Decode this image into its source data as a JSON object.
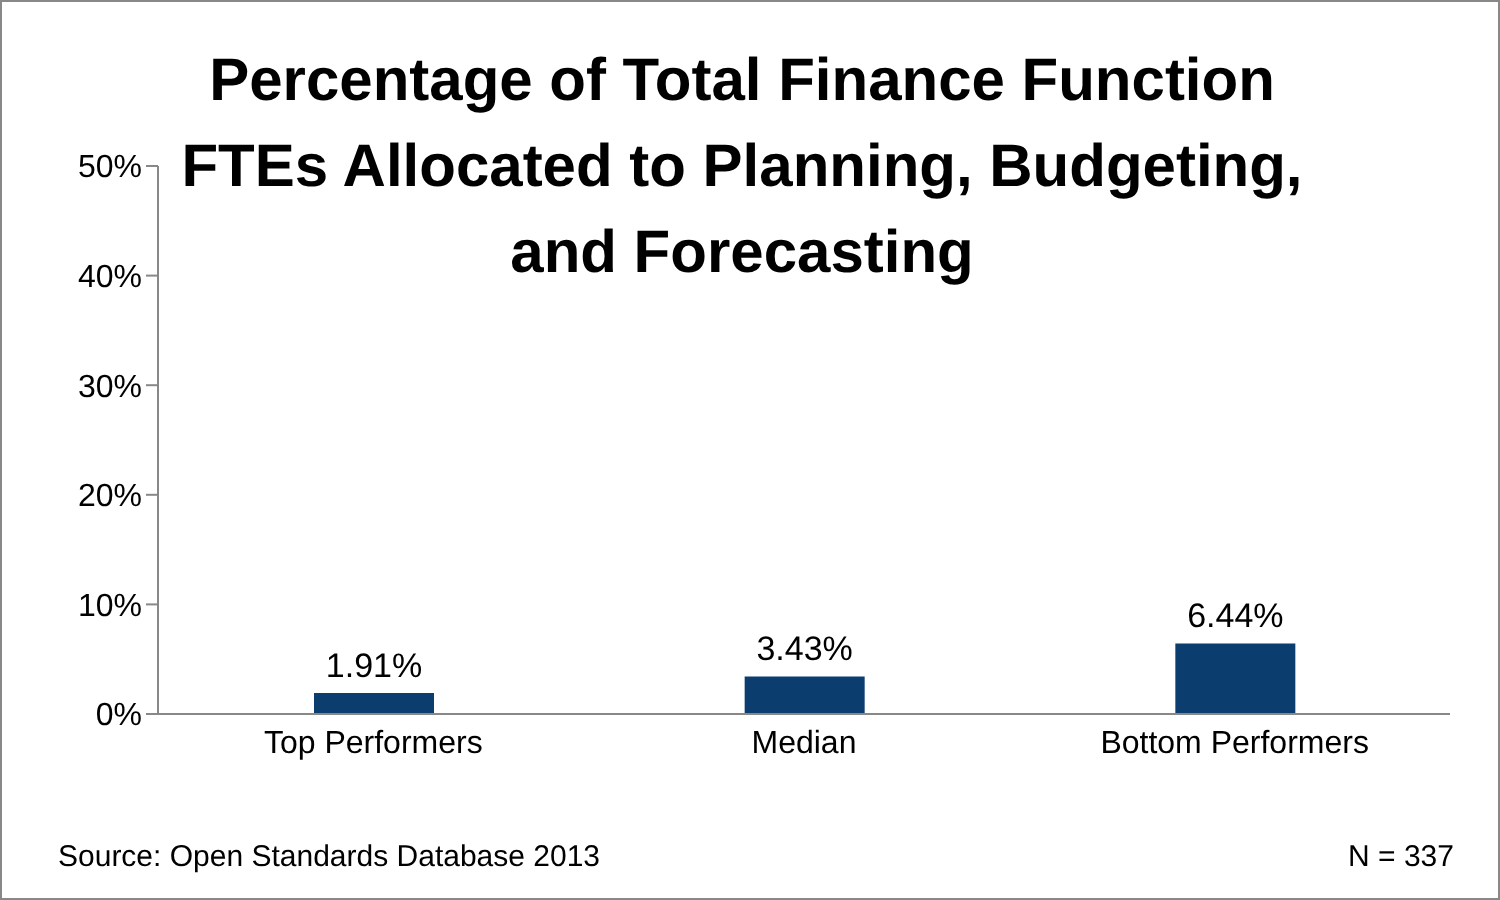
{
  "chart_data": {
    "type": "bar",
    "title": "Percentage of Total Finance Function FTEs Allocated to Planning, Budgeting, and Forecasting",
    "categories": [
      "Top Performers",
      "Median",
      "Bottom Performers"
    ],
    "values": [
      1.91,
      3.43,
      6.44
    ],
    "value_labels": [
      "1.91%",
      "3.43%",
      "6.44%"
    ],
    "color": "#0b3d6f",
    "ylim": [
      0,
      50
    ],
    "yticks": [
      {
        "value": 0,
        "label": "0%"
      },
      {
        "value": 10,
        "label": "10%"
      },
      {
        "value": 20,
        "label": "20%"
      },
      {
        "value": 30,
        "label": "30%"
      },
      {
        "value": 40,
        "label": "40%"
      },
      {
        "value": 50,
        "label": "50%"
      }
    ],
    "annotations": [
      "Source: Open Standards Database 2013",
      "N = 337"
    ]
  }
}
